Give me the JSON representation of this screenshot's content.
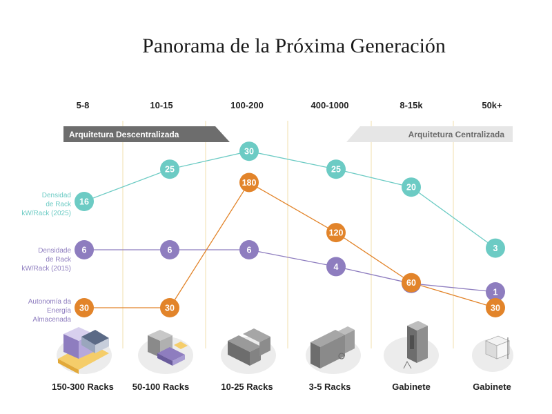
{
  "title": "Panorama de la Próxima Generación",
  "colors": {
    "density2025": "#6ccbc4",
    "density2015": "#8e7dbf",
    "autonomy": "#e2842a",
    "gridline": "#f0dfae",
    "banner_dark": "#6d6d6d",
    "banner_light": "#e6e6e6",
    "illustration_base": "#ececec"
  },
  "banners": {
    "decentralized": "Arquitetura Descentralizada",
    "centralized": "Arquitetura Centralizada"
  },
  "row_labels": {
    "density2025": [
      "Densidad",
      "de Rack",
      "kW/Rack (2025)"
    ],
    "density2015": [
      "Densidade",
      "de Rack",
      "kW/Rack (2015)"
    ],
    "autonomy": [
      "Autonomía da",
      "Energía",
      "Almacenada"
    ]
  },
  "chart_data": {
    "type": "line",
    "title": "Panorama de la Próxima Generación",
    "categories": [
      "5-8",
      "10-15",
      "100-200",
      "400-1000",
      "8-15k",
      "50k+"
    ],
    "bottom_labels": [
      "150-300 Racks",
      "50-100 Racks",
      "10-25 Racks",
      "3-5 Racks",
      "Gabinete",
      "Gabinete"
    ],
    "series": [
      {
        "name": "Densidad de Rack kW/Rack (2025)",
        "color_key": "density2025",
        "values": [
          16,
          25,
          30,
          25,
          20,
          3
        ],
        "labels": [
          "16",
          "25",
          "30",
          "25",
          "20",
          "3"
        ]
      },
      {
        "name": "Densidade de Rack kW/Rack (2015)",
        "color_key": "density2015",
        "values": [
          6,
          6,
          6,
          4,
          2,
          1
        ],
        "labels": [
          "6",
          "6",
          "6",
          "4",
          "2",
          "1"
        ]
      },
      {
        "name": "Autonomía da Energía Almacenada",
        "color_key": "autonomy",
        "values": [
          30,
          30,
          180,
          120,
          60,
          30
        ],
        "labels": [
          "30",
          "30",
          "180",
          "120",
          "60",
          "30"
        ]
      }
    ],
    "grid": true,
    "legend": "left"
  },
  "illustrations": [
    "campus-datacenter-icon",
    "building-datacenter-icon",
    "server-rows-icon",
    "rack-row-icon",
    "cabinet-tower-icon",
    "small-cabinet-icon"
  ]
}
